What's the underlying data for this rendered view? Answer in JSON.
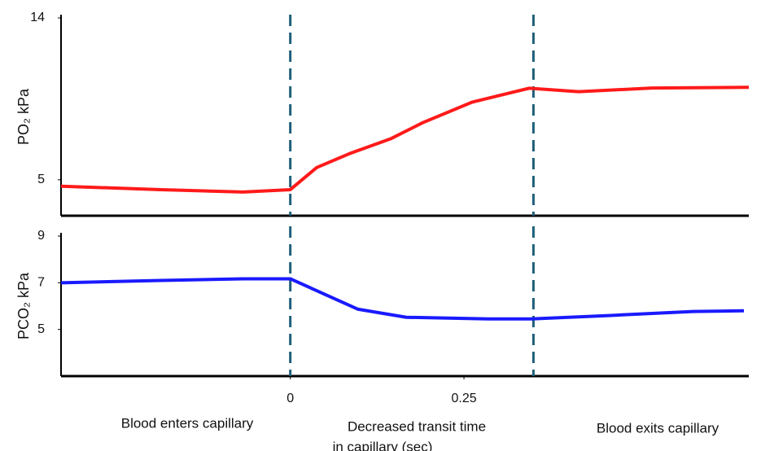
{
  "chart_data": [
    {
      "type": "line",
      "ylabel": "PO₂ kPa",
      "x": [
        -0.33,
        -0.186,
        -0.068,
        0,
        0.038,
        0.085,
        0.144,
        0.191,
        0.262,
        0.344,
        0.415,
        0.521,
        0.66
      ],
      "series": [
        {
          "name": "PO₂",
          "color": "#ff1a1a",
          "values": [
            4.64,
            4.45,
            4.32,
            4.45,
            5.68,
            6.45,
            7.27,
            8.18,
            9.32,
            10.09,
            9.9,
            10.1,
            10.14
          ]
        }
      ],
      "xlim": [
        -0.33,
        0.66
      ],
      "ylim": [
        3,
        14
      ],
      "yticks": [
        5,
        14
      ],
      "vlines": [
        0,
        0.35
      ]
    },
    {
      "type": "line",
      "ylabel": "PCO₂ kPa",
      "x": [
        -0.33,
        -0.186,
        -0.068,
        0,
        0.05,
        0.097,
        0.167,
        0.285,
        0.347,
        0.462,
        0.58,
        0.653
      ],
      "series": [
        {
          "name": "PCO₂",
          "color": "#1a1aff",
          "values": [
            7.0,
            7.1,
            7.17,
            7.17,
            6.5,
            5.87,
            5.52,
            5.45,
            5.45,
            5.6,
            5.77,
            5.8
          ]
        }
      ],
      "xlim": [
        -0.33,
        0.66
      ],
      "ylim": [
        3,
        9
      ],
      "yticks": [
        5,
        7,
        9
      ],
      "xticks": [
        0,
        0.25
      ],
      "vlines": [
        0,
        0.35
      ],
      "annotations": [
        "Blood enters capillary",
        "Decreased transit time",
        "in capillary (sec)",
        "Blood exits capillary"
      ]
    }
  ]
}
